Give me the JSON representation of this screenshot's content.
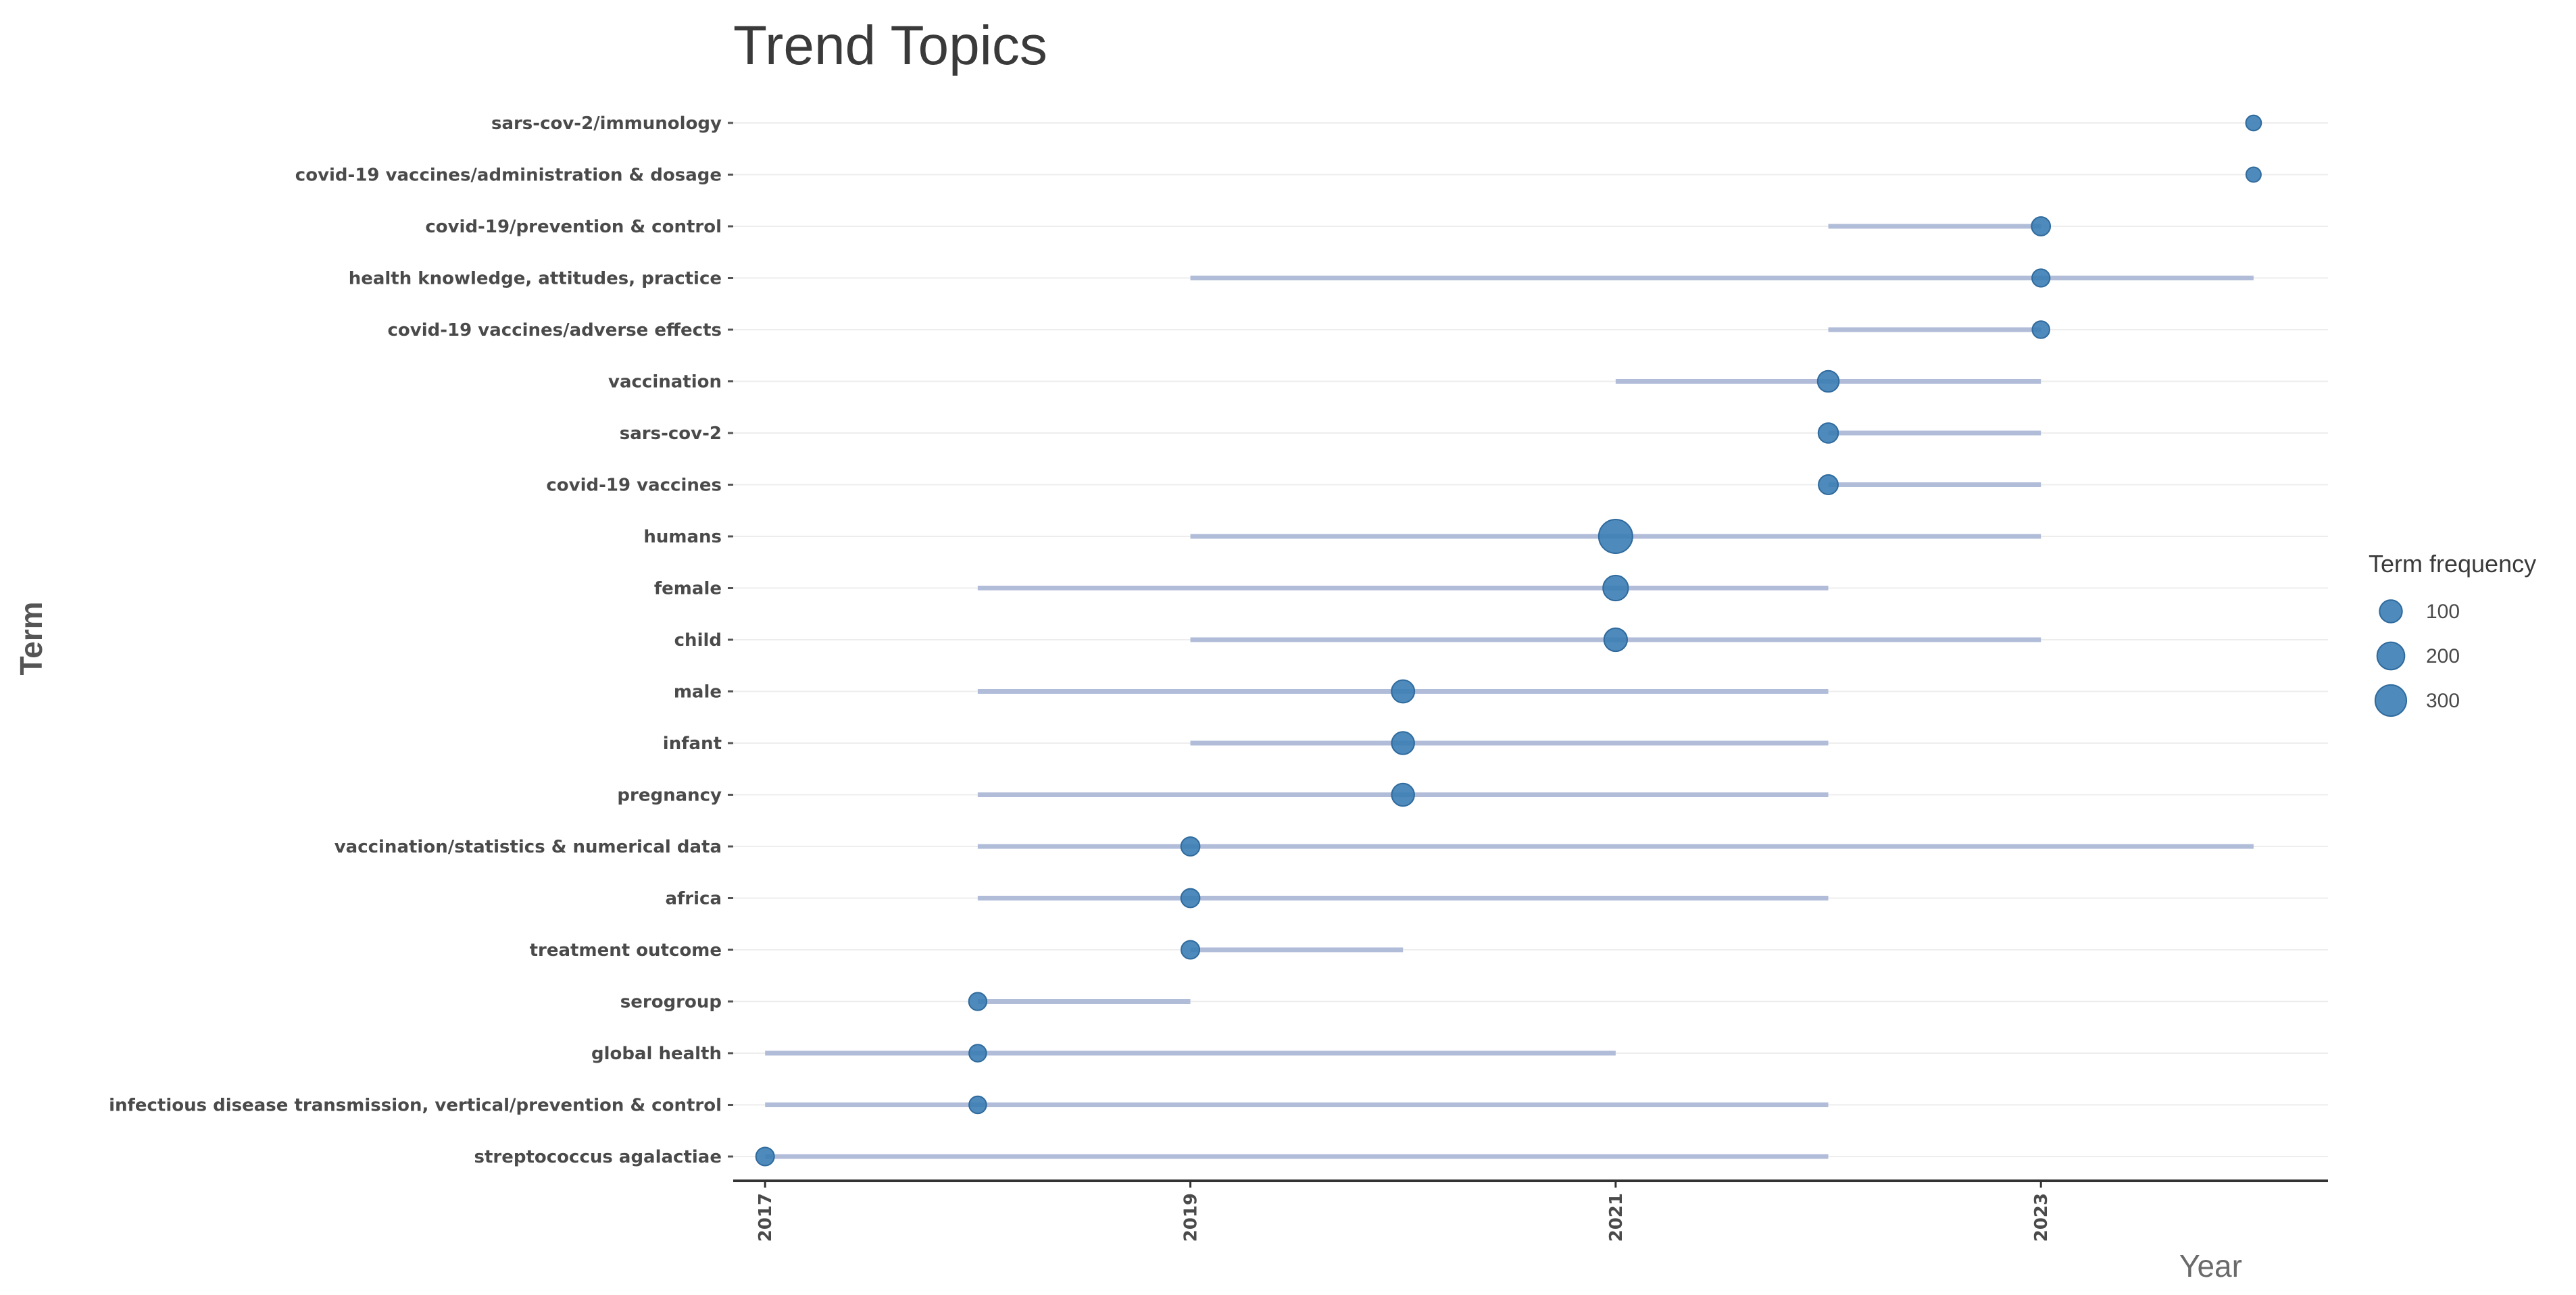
{
  "chart_data": {
    "type": "scatter",
    "title": "Trend Topics",
    "xlabel": "Year",
    "ylabel": "Term",
    "xlim": [
      2016.85,
      2024.35
    ],
    "x_ticks": [
      "2017",
      "2019",
      "2021",
      "2023"
    ],
    "grid": "horizontal",
    "legend_placement": "right",
    "colors": {
      "point": "#3b7db5",
      "range": "#b0bcd8",
      "grid": "#ededed",
      "axis": "#333333"
    },
    "legend": {
      "title": "Term frequency",
      "entries": [
        {
          "label": "100",
          "value": 100
        },
        {
          "label": "200",
          "value": 200
        },
        {
          "label": "300",
          "value": 300
        }
      ]
    },
    "terms": [
      {
        "term": "sars-cov-2/immunology",
        "q1": 2024,
        "median": 2024,
        "q3": 2024,
        "freq": 15
      },
      {
        "term": "covid-19 vaccines/administration & dosage",
        "q1": 2024,
        "median": 2024,
        "q3": 2024,
        "freq": 12
      },
      {
        "term": "covid-19/prevention & control",
        "q1": 2022,
        "median": 2023,
        "q3": 2023,
        "freq": 45
      },
      {
        "term": "health knowledge, attitudes, practice",
        "q1": 2019,
        "median": 2023,
        "q3": 2024,
        "freq": 35
      },
      {
        "term": "covid-19 vaccines/adverse effects",
        "q1": 2022,
        "median": 2023,
        "q3": 2023,
        "freq": 30
      },
      {
        "term": "vaccination",
        "q1": 2021,
        "median": 2022,
        "q3": 2023,
        "freq": 80
      },
      {
        "term": "sars-cov-2",
        "q1": 2022,
        "median": 2022,
        "q3": 2023,
        "freq": 60
      },
      {
        "term": "covid-19 vaccines",
        "q1": 2022,
        "median": 2022,
        "q3": 2023,
        "freq": 55
      },
      {
        "term": "humans",
        "q1": 2019,
        "median": 2021,
        "q3": 2023,
        "freq": 380
      },
      {
        "term": "female",
        "q1": 2018,
        "median": 2021,
        "q3": 2022,
        "freq": 150
      },
      {
        "term": "child",
        "q1": 2019,
        "median": 2021,
        "q3": 2023,
        "freq": 110
      },
      {
        "term": "male",
        "q1": 2018,
        "median": 2020,
        "q3": 2022,
        "freq": 105
      },
      {
        "term": "infant",
        "q1": 2019,
        "median": 2020,
        "q3": 2022,
        "freq": 100
      },
      {
        "term": "pregnancy",
        "q1": 2018,
        "median": 2020,
        "q3": 2022,
        "freq": 100
      },
      {
        "term": "vaccination/statistics & numerical data",
        "q1": 2018,
        "median": 2019,
        "q3": 2024,
        "freq": 45
      },
      {
        "term": "africa",
        "q1": 2018,
        "median": 2019,
        "q3": 2022,
        "freq": 45
      },
      {
        "term": "treatment outcome",
        "q1": 2019,
        "median": 2019,
        "q3": 2020,
        "freq": 40
      },
      {
        "term": "serogroup",
        "q1": 2018,
        "median": 2018,
        "q3": 2019,
        "freq": 35
      },
      {
        "term": "global health",
        "q1": 2017,
        "median": 2018,
        "q3": 2021,
        "freq": 30
      },
      {
        "term": "infectious disease transmission, vertical/prevention & control",
        "q1": 2017,
        "median": 2018,
        "q3": 2022,
        "freq": 30
      },
      {
        "term": "streptococcus agalactiae",
        "q1": 2017,
        "median": 2017,
        "q3": 2022,
        "freq": 40
      }
    ]
  }
}
